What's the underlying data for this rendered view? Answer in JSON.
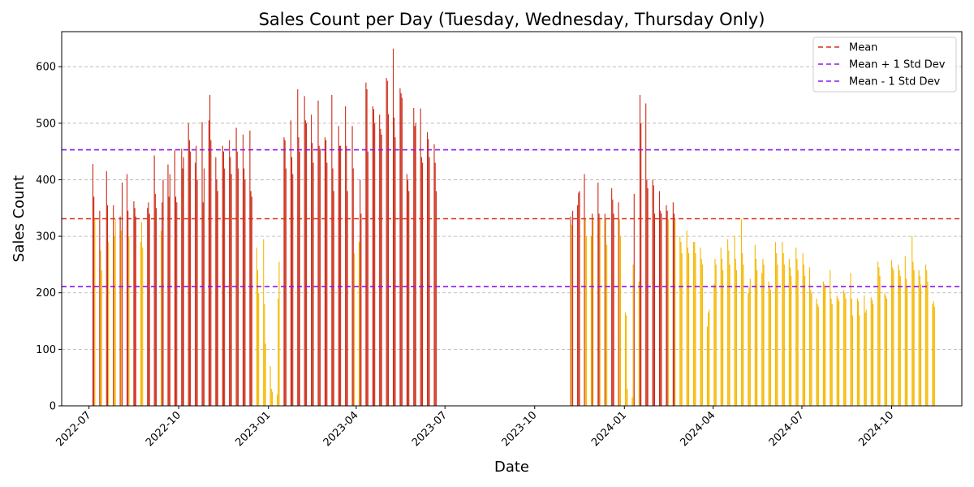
{
  "chart_data": {
    "type": "bar",
    "title": "Sales Count per Day (Tuesday, Wednesday, Thursday Only)",
    "xlabel": "Date",
    "ylabel": "Sales Count",
    "ylim": [
      0,
      662
    ],
    "xlim": [
      "2022-06-03",
      "2024-12-12"
    ],
    "yticks": [
      0,
      100,
      200,
      300,
      400,
      500,
      600
    ],
    "xticks": [
      "2022-07-01",
      "2022-10-01",
      "2023-01-01",
      "2023-04-01",
      "2023-07-01",
      "2023-10-01",
      "2024-01-01",
      "2024-04-01",
      "2024-07-01",
      "2024-10-01"
    ],
    "xtick_labels": [
      "2022-07",
      "2022-10",
      "2023-01",
      "2023-04",
      "2023-07",
      "2023-10",
      "2024-01",
      "2024-04",
      "2024-07",
      "2024-10"
    ],
    "grid": "y-dashed",
    "legend_position": "top-right",
    "colors": {
      "above_mean": "#cc2a16",
      "below_mean": "#f5b800",
      "mean_line": "#d62f1f",
      "std_lines": "#8b16f0"
    },
    "reference_lines": [
      {
        "name": "Mean",
        "value": 331,
        "color": "#d62f1f"
      },
      {
        "name": "Mean + 1 Std Dev",
        "value": 453,
        "color": "#8b16f0"
      },
      {
        "name": "Mean - 1 Std Dev",
        "value": 211,
        "color": "#8b16f0"
      }
    ],
    "segments": [
      {
        "start": "2022-07-05",
        "values": [
          428,
          370,
          330,
          345,
          275,
          240,
          415,
          355,
          290,
          355,
          300,
          330,
          335,
          310,
          395,
          410,
          345,
          300,
          362,
          350,
          335,
          290,
          325,
          280,
          350,
          360,
          340,
          443,
          375,
          350,
          310,
          360,
          400,
          427,
          370,
          410,
          452,
          370,
          360,
          455,
          420,
          440,
          500,
          470,
          450,
          430,
          460,
          400,
          502,
          360,
          420,
          505,
          550,
          470,
          440,
          400,
          380,
          460,
          450,
          420,
          470,
          440,
          410,
          492,
          450,
          420,
          480,
          420,
          400,
          487,
          380,
          370,
          280,
          240,
          200,
          295,
          180,
          110,
          70,
          30,
          25,
          20,
          190,
          255,
          475,
          470,
          420,
          505,
          440,
          410,
          560,
          475,
          450,
          548,
          505,
          500,
          515,
          465,
          430,
          540,
          460,
          455,
          475,
          470,
          430,
          550,
          420,
          380,
          495,
          460,
          460,
          530,
          460,
          380,
          495,
          420,
          270,
          290,
          400,
          340,
          572,
          560,
          450,
          530,
          525,
          500,
          515,
          490,
          480,
          580,
          575,
          516,
          632,
          510,
          475,
          562,
          553,
          545,
          410,
          400,
          380,
          527,
          495,
          500,
          526,
          440,
          430,
          484,
          472,
          440,
          463,
          430,
          380
        ]
      },
      {
        "start": "2023-11-07",
        "values": [
          335,
          320,
          345,
          355,
          377,
          380,
          410,
          330,
          300,
          300,
          340,
          330,
          395,
          340,
          330,
          340,
          330,
          285,
          385,
          365,
          340,
          360,
          330,
          300,
          165,
          160,
          30,
          15,
          250,
          375,
          220,
          550,
          500,
          535,
          400,
          385,
          400,
          390,
          340,
          380,
          345,
          340,
          355,
          345,
          330,
          360,
          340,
          330,
          300,
          290,
          270,
          310,
          280,
          270,
          290,
          290,
          270,
          280,
          260,
          250,
          140,
          165,
          170,
          215,
          260,
          250,
          280,
          260,
          240,
          295,
          275,
          250,
          300,
          260,
          240,
          330,
          270,
          250,
          200,
          210,
          225,
          285,
          260,
          240,
          235,
          260,
          250,
          220,
          210,
          205,
          290,
          270,
          250,
          290,
          270,
          250,
          260,
          245,
          230,
          280,
          260,
          240,
          270,
          250,
          230,
          245,
          205,
          200,
          190,
          180,
          175,
          220,
          215,
          210,
          240,
          190,
          180,
          195,
          190,
          185,
          205,
          200,
          190,
          235,
          190,
          160,
          190,
          185,
          160,
          195,
          165,
          170,
          192,
          188,
          180,
          255,
          245,
          230,
          200,
          195,
          190,
          258,
          245,
          240,
          250,
          240,
          230,
          265,
          225,
          210,
          300,
          255,
          240,
          240,
          230,
          215,
          250,
          240,
          220,
          180,
          185,
          175
        ]
      }
    ]
  }
}
